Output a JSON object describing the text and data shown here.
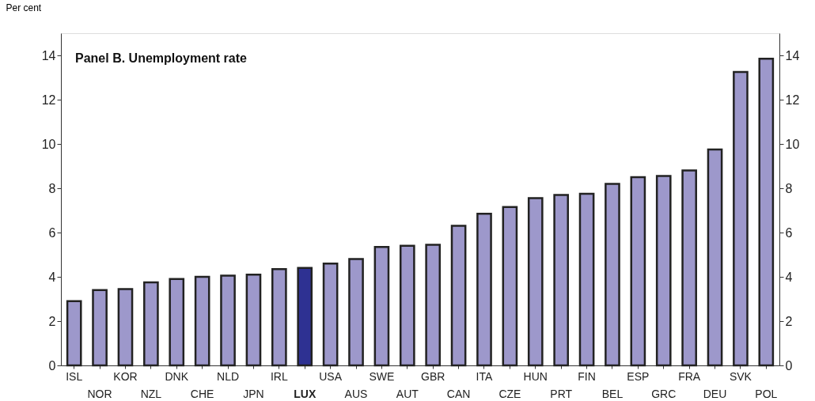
{
  "chart_data": {
    "type": "bar",
    "title": "Panel B. Unemployment rate",
    "ylabel": "Per cent",
    "categories": [
      "ISL",
      "NOR",
      "KOR",
      "NZL",
      "DNK",
      "CHE",
      "NLD",
      "JPN",
      "IRL",
      "LUX",
      "USA",
      "AUS",
      "SWE",
      "AUT",
      "GBR",
      "CAN",
      "ITA",
      "CZE",
      "HUN",
      "PRT",
      "FIN",
      "BEL",
      "ESP",
      "GRC",
      "FRA",
      "DEU",
      "SVK",
      "POL"
    ],
    "values": [
      2.9,
      3.4,
      3.45,
      3.75,
      3.9,
      4.0,
      4.05,
      4.1,
      4.35,
      4.4,
      4.6,
      4.8,
      5.35,
      5.4,
      5.45,
      6.3,
      6.85,
      7.15,
      7.55,
      7.7,
      7.75,
      8.2,
      8.5,
      8.55,
      8.8,
      9.75,
      13.25,
      13.85
    ],
    "colors": [
      "#9d98cb",
      "#9d98cb",
      "#9d98cb",
      "#9d98cb",
      "#9d98cb",
      "#9d98cb",
      "#9d98cb",
      "#9d98cb",
      "#9d98cb",
      "#2e3192",
      "#9d98cb",
      "#9d98cb",
      "#9d98cb",
      "#9d98cb",
      "#9d98cb",
      "#9d98cb",
      "#9d98cb",
      "#9d98cb",
      "#9d98cb",
      "#9d98cb",
      "#9d98cb",
      "#9d98cb",
      "#9d98cb",
      "#9d98cb",
      "#9d98cb",
      "#9d98cb",
      "#9d98cb",
      "#9d98cb"
    ],
    "ylim": [
      0,
      15
    ],
    "yticks": [
      0,
      2,
      4,
      6,
      8,
      10,
      12,
      14
    ],
    "y2lim": [
      0,
      15
    ],
    "y2ticks": [
      0,
      2,
      4,
      6,
      8,
      10,
      12,
      14
    ],
    "grid": false
  }
}
